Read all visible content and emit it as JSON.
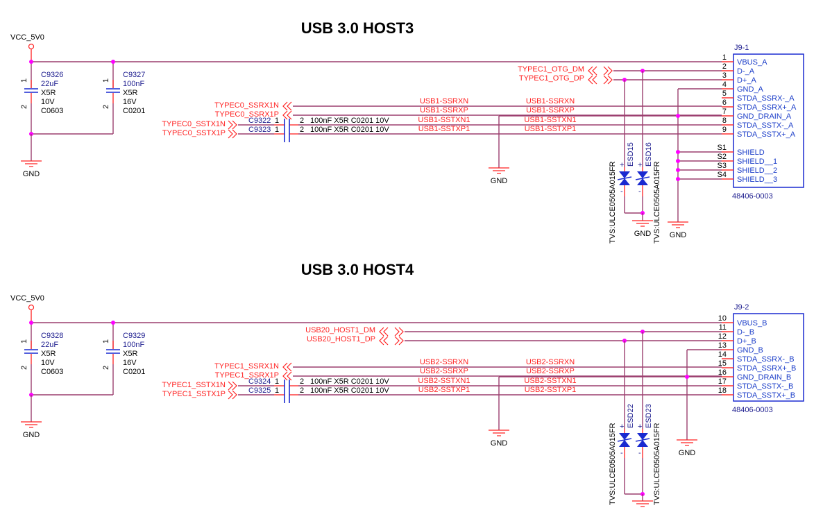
{
  "sections": [
    {
      "title": "USB 3.0 HOST3",
      "power_label": "VCC_5V0",
      "gnd_label": "GND",
      "caps": [
        {
          "ref": "C9326",
          "value": "22uF",
          "dielectric": "X5R",
          "voltage": "10V",
          "package": "C0603",
          "pin1": "1",
          "pin2": "2"
        },
        {
          "ref": "C9327",
          "value": "100nF",
          "dielectric": "X5R",
          "voltage": "16V",
          "package": "C0201",
          "pin1": "1",
          "pin2": "2"
        }
      ],
      "rx_ports": [
        "TYPEC0_SSRX1N",
        "TYPEC0_SSRX1P"
      ],
      "tx_ports": [
        "TYPEC0_SSTX1N",
        "TYPEC0_SSTX1P"
      ],
      "ac_caps": [
        {
          "ref": "C9322",
          "pin1": "1",
          "pin2": "2",
          "spec": "100nF  X5R C0201  10V"
        },
        {
          "ref": "C9323",
          "pin1": "1",
          "pin2": "2",
          "spec": "100nF  X5R C0201  10V"
        }
      ],
      "otg_ports": [
        "TYPEC1_OTG_DM",
        "TYPEC1_OTG_DP"
      ],
      "nets": [
        "USB1-SSRXN",
        "USB1-SSRXP",
        "USB1-SSTXN1",
        "USB1-SSTXP1"
      ],
      "esd": [
        {
          "ref": "ESD15",
          "part": "TVS:ULCE0505A015FR",
          "plus": "+",
          "minus": "-"
        },
        {
          "ref": "ESD16",
          "part": "TVS:ULCE0505A015FR",
          "plus": "+",
          "minus": "-"
        }
      ],
      "connector": {
        "ref": "J9-1",
        "part": "48406-0003",
        "pins": [
          {
            "num": "1",
            "name": "VBUS_A"
          },
          {
            "num": "2",
            "name": "D-_A"
          },
          {
            "num": "3",
            "name": "D+_A"
          },
          {
            "num": "4",
            "name": "GND_A"
          },
          {
            "num": "5",
            "name": "STDA_SSRX-_A"
          },
          {
            "num": "6",
            "name": "STDA_SSRX+_A"
          },
          {
            "num": "7",
            "name": "GND_DRAIN_A"
          },
          {
            "num": "8",
            "name": "STDA_SSTX-_A"
          },
          {
            "num": "9",
            "name": "STDA_SSTX+_A"
          }
        ],
        "shields": [
          {
            "num": "S1",
            "name": "SHIELD"
          },
          {
            "num": "S2",
            "name": "SHIELD__1"
          },
          {
            "num": "S3",
            "name": "SHIELD__2"
          },
          {
            "num": "S4",
            "name": "SHIELD__3"
          }
        ]
      }
    },
    {
      "title": "USB 3.0 HOST4",
      "power_label": "VCC_5V0",
      "gnd_label": "GND",
      "caps": [
        {
          "ref": "C9328",
          "value": "22uF",
          "dielectric": "X5R",
          "voltage": "10V",
          "package": "C0603",
          "pin1": "1",
          "pin2": "2"
        },
        {
          "ref": "C9329",
          "value": "100nF",
          "dielectric": "X5R",
          "voltage": "16V",
          "package": "C0201",
          "pin1": "1",
          "pin2": "2"
        }
      ],
      "rx_ports": [
        "TYPEC1_SSRX1N",
        "TYPEC1_SSRX1P"
      ],
      "tx_ports": [
        "TYPEC1_SSTX1N",
        "TYPEC1_SSTX1P"
      ],
      "ac_caps": [
        {
          "ref": "C9324",
          "pin1": "1",
          "pin2": "2",
          "spec": "100nF  X5R C0201  10V"
        },
        {
          "ref": "C9325",
          "pin1": "1",
          "pin2": "2",
          "spec": "100nF  X5R C0201  10V"
        }
      ],
      "otg_ports": [
        "USB20_HOST1_DM",
        "USB20_HOST1_DP"
      ],
      "nets": [
        "USB2-SSRXN",
        "USB2-SSRXP",
        "USB2-SSTXN1",
        "USB2-SSTXP1"
      ],
      "esd": [
        {
          "ref": "ESD22",
          "part": "TVS:ULCE0505A015FR",
          "plus": "+",
          "minus": "-"
        },
        {
          "ref": "ESD23",
          "part": "TVS:ULCE0505A015FR",
          "plus": "+",
          "minus": "-"
        }
      ],
      "connector": {
        "ref": "J9-2",
        "part": "48406-0003",
        "pins": [
          {
            "num": "10",
            "name": "VBUS_B"
          },
          {
            "num": "11",
            "name": "D-_B"
          },
          {
            "num": "12",
            "name": "D+_B"
          },
          {
            "num": "13",
            "name": "GND_B"
          },
          {
            "num": "14",
            "name": "STDA_SSRX-_B"
          },
          {
            "num": "15",
            "name": "STDA_SSRX+_B"
          },
          {
            "num": "16",
            "name": "GND_DRAIN_B"
          },
          {
            "num": "17",
            "name": "STDA_SSTX-_B"
          },
          {
            "num": "18",
            "name": "STDA_SSTX+_B"
          }
        ],
        "shields": []
      }
    }
  ],
  "colors": {
    "wire": "#9b3f6e",
    "net_label": "#ff2020",
    "component": "#202090",
    "junction": "#ff00ff"
  }
}
